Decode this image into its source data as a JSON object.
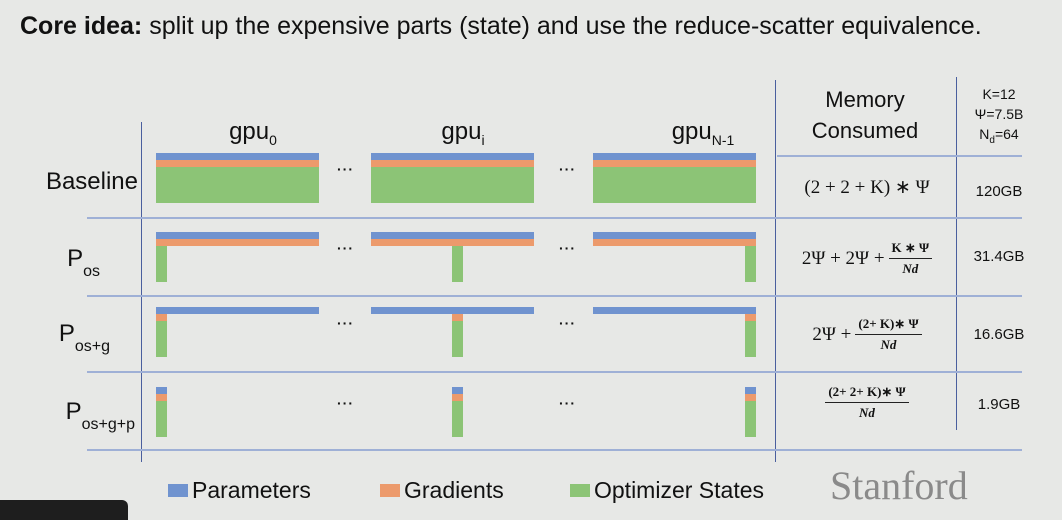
{
  "title": {
    "bold": "Core idea:",
    "rest": " split up the expensive parts (state) and use the reduce-scatter equivalence."
  },
  "gpus": [
    {
      "base": "gpu",
      "sub": "0"
    },
    {
      "base": "gpu",
      "sub": "i"
    },
    {
      "base": "gpu",
      "sub": "N-1"
    }
  ],
  "ellipsis": "···",
  "memory_header": {
    "line1": "Memory",
    "line2": "Consumed"
  },
  "params": {
    "k": "K=12",
    "psi": "Ψ=7.5B",
    "nd_base": "N",
    "nd_sub": "d",
    "nd_val": "=64"
  },
  "rows": [
    {
      "base": "Baseline",
      "sub": "",
      "sharded": [],
      "formula": {
        "prefix": "(2 + 2 + K) ∗ Ψ",
        "num": "",
        "den": ""
      },
      "value": "120GB"
    },
    {
      "base": "P",
      "sub": "os",
      "sharded": [
        "optimizer"
      ],
      "formula": {
        "prefix": "2Ψ + 2Ψ +",
        "num": "K ∗ Ψ",
        "den": "Nd"
      },
      "value": "31.4GB"
    },
    {
      "base": "P",
      "sub": "os+g",
      "sharded": [
        "optimizer",
        "gradients"
      ],
      "formula": {
        "prefix": "2Ψ +",
        "num": "(2+ K)∗ Ψ",
        "den": "Nd"
      },
      "value": "16.6GB"
    },
    {
      "base": "P",
      "sub": "os+g+p",
      "sharded": [
        "optimizer",
        "gradients",
        "parameters"
      ],
      "formula": {
        "prefix": "",
        "num": "(2+ 2+ K)∗ Ψ",
        "den": "Nd"
      },
      "value": "1.9GB"
    }
  ],
  "legend": [
    {
      "label": "Parameters",
      "color": "#7093cf"
    },
    {
      "label": "Gradients",
      "color": "#ec9a6c"
    },
    {
      "label": "Optimizer States",
      "color": "#8cc476"
    }
  ],
  "logo": "Stanford"
}
